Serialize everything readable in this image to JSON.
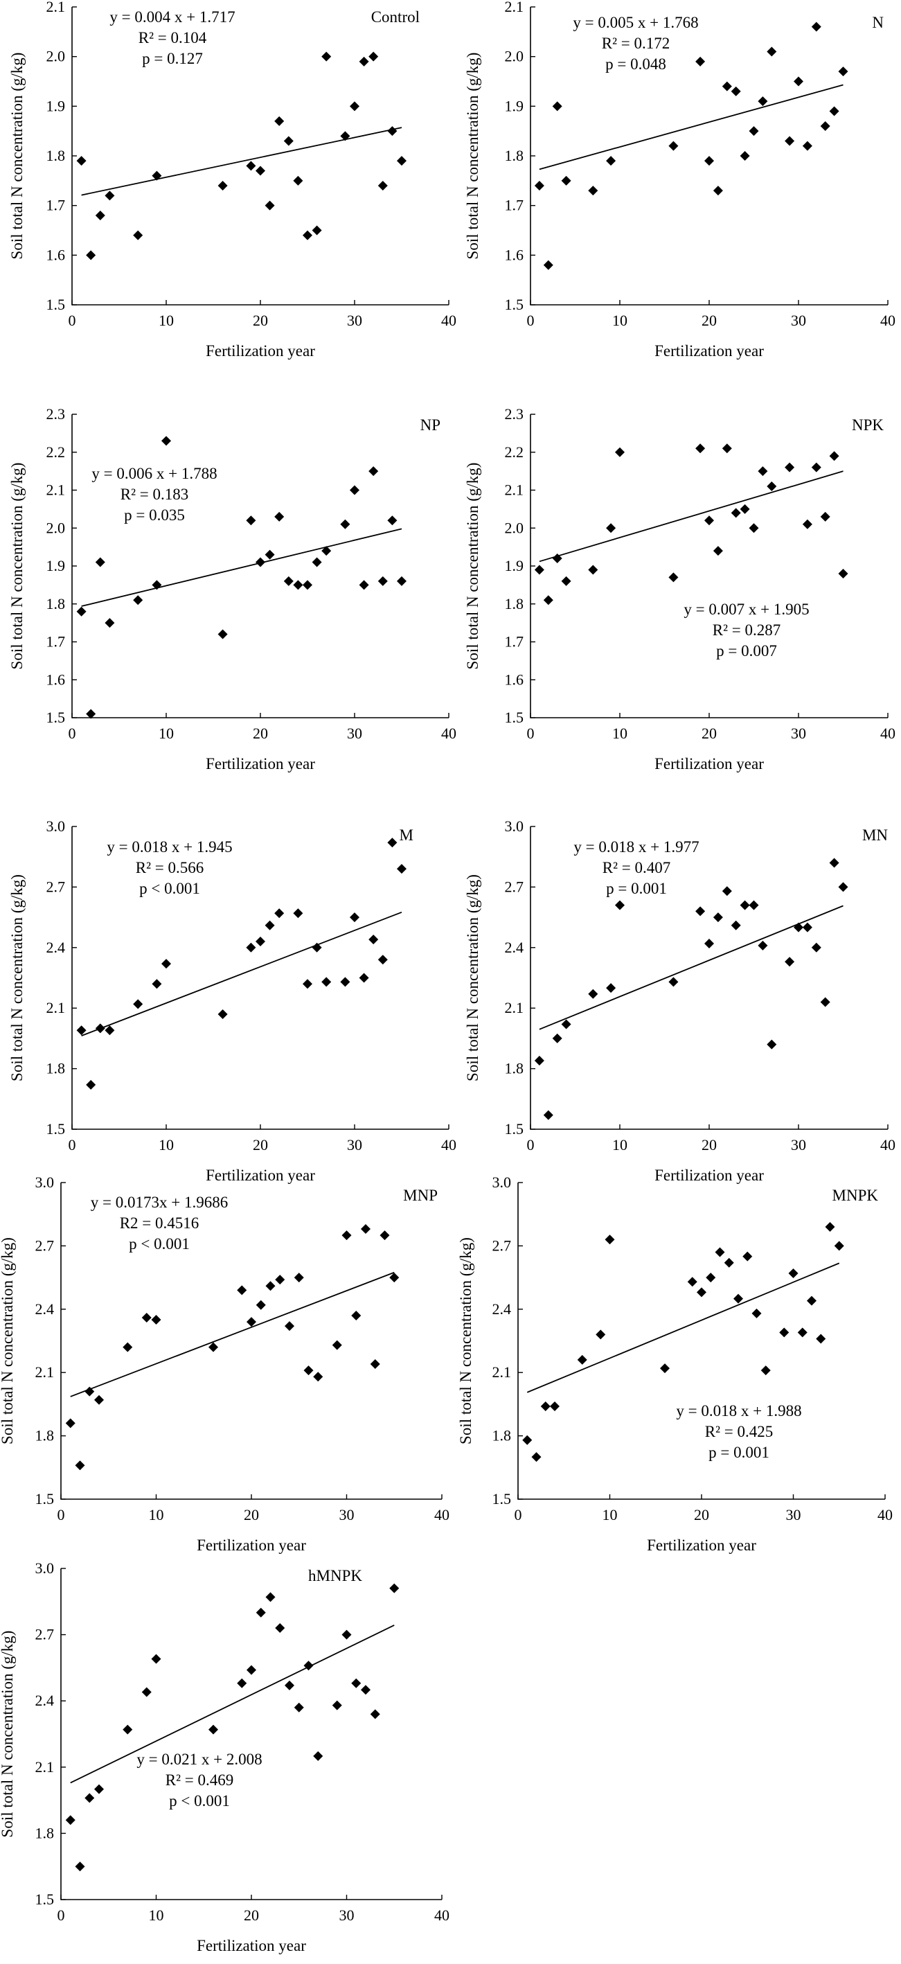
{
  "chart_data": [
    {
      "type": "scatter",
      "title": "Control",
      "xlabel": "Fertilization year",
      "ylabel": "Soil total N concentration (g/kg)",
      "xlim": [
        0,
        40
      ],
      "xticks": [
        "0",
        "10",
        "20",
        "30",
        "40"
      ],
      "ylim": [
        1.5,
        2.1
      ],
      "yticks": [
        "1.5",
        "1.6",
        "1.7",
        "1.8",
        "1.9",
        "2.0",
        "2.1"
      ],
      "equation": "y = 0.004 x + 1.717",
      "r2": "R² = 0.104",
      "p": "p = 0.127",
      "fit": {
        "slope": 0.004,
        "intercept": 1.717,
        "x": [
          1,
          35
        ]
      },
      "x": [
        1,
        2,
        3,
        4,
        7,
        9,
        16,
        19,
        20,
        21,
        22,
        23,
        24,
        25,
        26,
        27,
        29,
        30,
        31,
        32,
        33,
        34,
        35
      ],
      "y": [
        1.79,
        1.6,
        1.68,
        1.72,
        1.64,
        1.76,
        1.74,
        1.78,
        1.77,
        1.7,
        1.87,
        1.83,
        1.75,
        1.64,
        1.65,
        2.0,
        1.84,
        1.9,
        1.99,
        2.0,
        1.74,
        1.85,
        1.79
      ]
    },
    {
      "type": "scatter",
      "title": "N",
      "xlabel": "Fertilization year",
      "ylabel": "Soil total N concentration (g/kg)",
      "xlim": [
        0,
        40
      ],
      "xticks": [
        "0",
        "10",
        "20",
        "30",
        "40"
      ],
      "ylim": [
        1.5,
        2.1
      ],
      "yticks": [
        "1.5",
        "1.6",
        "1.7",
        "1.8",
        "1.9",
        "2.0",
        "2.1"
      ],
      "equation": "y = 0.005 x + 1.768",
      "r2": "R² = 0.172",
      "p": "p = 0.048",
      "fit": {
        "slope": 0.005,
        "intercept": 1.768,
        "x": [
          1,
          35
        ]
      },
      "x": [
        1,
        2,
        3,
        4,
        7,
        9,
        16,
        19,
        20,
        21,
        22,
        23,
        24,
        25,
        26,
        27,
        29,
        30,
        31,
        32,
        33,
        34,
        35
      ],
      "y": [
        1.74,
        1.58,
        1.9,
        1.75,
        1.73,
        1.79,
        1.82,
        1.99,
        1.79,
        1.73,
        1.94,
        1.93,
        1.8,
        1.85,
        1.91,
        2.01,
        1.83,
        1.95,
        1.82,
        2.06,
        1.86,
        1.89,
        1.97
      ]
    },
    {
      "type": "scatter",
      "title": "NP",
      "xlabel": "Fertilization year",
      "ylabel": "Soil total N concentration (g/kg)",
      "xlim": [
        0,
        40
      ],
      "xticks": [
        "0",
        "10",
        "20",
        "30",
        "40"
      ],
      "ylim": [
        1.5,
        2.3
      ],
      "yticks": [
        "1.5",
        "1.6",
        "1.7",
        "1.8",
        "1.9",
        "2.0",
        "2.1",
        "2.2",
        "2.3"
      ],
      "equation": "y = 0.006 x + 1.788",
      "r2": "R² = 0.183",
      "p": "p = 0.035",
      "fit": {
        "slope": 0.006,
        "intercept": 1.788,
        "x": [
          1,
          35
        ]
      },
      "x": [
        1,
        2,
        3,
        4,
        7,
        9,
        10,
        16,
        19,
        20,
        21,
        22,
        23,
        24,
        25,
        26,
        27,
        29,
        30,
        31,
        32,
        33,
        34,
        35
      ],
      "y": [
        1.78,
        1.51,
        1.91,
        1.75,
        1.81,
        1.85,
        2.23,
        1.72,
        2.02,
        1.91,
        1.93,
        2.03,
        1.86,
        1.85,
        1.85,
        1.91,
        1.94,
        2.01,
        2.1,
        1.85,
        2.15,
        1.86,
        2.02,
        1.86
      ]
    },
    {
      "type": "scatter",
      "title": "NPK",
      "xlabel": "Fertilization year",
      "ylabel": "Soil total N concentration (g/kg)",
      "xlim": [
        0,
        40
      ],
      "xticks": [
        "0",
        "10",
        "20",
        "30",
        "40"
      ],
      "ylim": [
        1.5,
        2.3
      ],
      "yticks": [
        "1.5",
        "1.6",
        "1.7",
        "1.8",
        "1.9",
        "2.0",
        "2.1",
        "2.2",
        "2.3"
      ],
      "equation": "y = 0.007 x + 1.905",
      "r2": "R² = 0.287",
      "p": "p = 0.007",
      "fit": {
        "slope": 0.007,
        "intercept": 1.905,
        "x": [
          1,
          35
        ]
      },
      "x": [
        1,
        2,
        3,
        4,
        7,
        9,
        10,
        16,
        19,
        20,
        21,
        22,
        23,
        24,
        25,
        26,
        27,
        29,
        31,
        32,
        33,
        34,
        35
      ],
      "y": [
        1.89,
        1.81,
        1.92,
        1.86,
        1.89,
        2.0,
        2.2,
        1.87,
        2.21,
        2.02,
        1.94,
        2.21,
        2.04,
        2.05,
        2.0,
        2.15,
        2.11,
        2.16,
        2.01,
        2.16,
        2.03,
        2.19,
        1.88
      ]
    },
    {
      "type": "scatter",
      "title": "M",
      "xlabel": "Fertilization year",
      "ylabel": "Soil total N concentration (g/kg)",
      "xlim": [
        0,
        40
      ],
      "xticks": [
        "0",
        "10",
        "20",
        "30",
        "40"
      ],
      "ylim": [
        1.5,
        3.0
      ],
      "yticks": [
        "1.5",
        "1.8",
        "2.1",
        "2.4",
        "2.7",
        "3.0"
      ],
      "equation": "y = 0.018 x + 1.945",
      "r2": "R² = 0.566",
      "p": "p < 0.001",
      "fit": {
        "slope": 0.018,
        "intercept": 1.945,
        "x": [
          1,
          35
        ]
      },
      "x": [
        1,
        2,
        3,
        4,
        7,
        9,
        10,
        16,
        19,
        20,
        21,
        22,
        24,
        25,
        26,
        27,
        29,
        30,
        31,
        32,
        33,
        34,
        35
      ],
      "y": [
        1.99,
        1.72,
        2.0,
        1.99,
        2.12,
        2.22,
        2.32,
        2.07,
        2.4,
        2.43,
        2.51,
        2.57,
        2.57,
        2.22,
        2.4,
        2.23,
        2.23,
        2.55,
        2.25,
        2.44,
        2.34,
        2.92,
        2.79
      ]
    },
    {
      "type": "scatter",
      "title": "MN",
      "xlabel": "Fertilization year",
      "ylabel": "Soil total N concentration (g/kg)",
      "xlim": [
        0,
        40
      ],
      "xticks": [
        "0",
        "10",
        "20",
        "30",
        "40"
      ],
      "ylim": [
        1.5,
        3.0
      ],
      "yticks": [
        "1.5",
        "1.8",
        "2.1",
        "2.4",
        "2.7",
        "3.0"
      ],
      "equation": "y = 0.018 x + 1.977",
      "r2": "R² = 0.407",
      "p": "p = 0.001",
      "fit": {
        "slope": 0.018,
        "intercept": 1.977,
        "x": [
          1,
          35
        ]
      },
      "x": [
        1,
        2,
        3,
        4,
        7,
        9,
        10,
        16,
        19,
        20,
        21,
        22,
        23,
        24,
        25,
        26,
        27,
        29,
        30,
        31,
        32,
        33,
        34,
        35
      ],
      "y": [
        1.84,
        1.57,
        1.95,
        2.02,
        2.17,
        2.2,
        2.61,
        2.23,
        2.58,
        2.42,
        2.55,
        2.68,
        2.51,
        2.61,
        2.61,
        2.41,
        1.92,
        2.33,
        2.5,
        2.5,
        2.4,
        2.13,
        2.82,
        2.7
      ]
    },
    {
      "type": "scatter",
      "title": "MNP",
      "xlabel": "Fertilization year",
      "ylabel": "Soil total N concentration (g/kg)",
      "xlim": [
        0,
        40
      ],
      "xticks": [
        "0",
        "10",
        "20",
        "30",
        "40"
      ],
      "ylim": [
        1.5,
        3.0
      ],
      "yticks": [
        "1.5",
        "1.8",
        "2.1",
        "2.4",
        "2.7",
        "3.0"
      ],
      "equation": "y = 0.0173x + 1.9686",
      "r2": "R2 = 0.4516",
      "p": "p < 0.001",
      "fit": {
        "slope": 0.0173,
        "intercept": 1.9686,
        "x": [
          1,
          35
        ]
      },
      "x": [
        1,
        2,
        3,
        4,
        7,
        9,
        10,
        16,
        19,
        20,
        21,
        22,
        23,
        24,
        25,
        26,
        27,
        29,
        30,
        31,
        32,
        33,
        34,
        35
      ],
      "y": [
        1.86,
        1.66,
        2.01,
        1.97,
        2.22,
        2.36,
        2.35,
        2.22,
        2.49,
        2.34,
        2.42,
        2.51,
        2.54,
        2.32,
        2.55,
        2.11,
        2.08,
        2.23,
        2.75,
        2.37,
        2.78,
        2.14,
        2.75,
        2.55
      ]
    },
    {
      "type": "scatter",
      "title": "MNPK",
      "xlabel": "Fertilization year",
      "ylabel": "Soil total N concentration (g/kg)",
      "xlim": [
        0,
        40
      ],
      "xticks": [
        "0",
        "10",
        "20",
        "30",
        "40"
      ],
      "ylim": [
        1.5,
        3.0
      ],
      "yticks": [
        "1.5",
        "1.8",
        "2.1",
        "2.4",
        "2.7",
        "3.0"
      ],
      "equation": "y = 0.018 x + 1.988",
      "r2": "R² = 0.425",
      "p": "p = 0.001",
      "fit": {
        "slope": 0.018,
        "intercept": 1.988,
        "x": [
          1,
          35
        ]
      },
      "x": [
        1,
        2,
        3,
        4,
        7,
        9,
        10,
        16,
        19,
        20,
        21,
        22,
        23,
        24,
        25,
        26,
        27,
        29,
        30,
        31,
        32,
        33,
        34,
        35
      ],
      "y": [
        1.78,
        1.7,
        1.94,
        1.94,
        2.16,
        2.28,
        2.73,
        2.12,
        2.53,
        2.48,
        2.55,
        2.67,
        2.62,
        2.45,
        2.65,
        2.38,
        2.11,
        2.29,
        2.57,
        2.29,
        2.44,
        2.26,
        2.79,
        2.7
      ]
    },
    {
      "type": "scatter",
      "title": "hMNPK",
      "xlabel": "Fertilization year",
      "ylabel": "Soil total N concentration (g/kg)",
      "xlim": [
        0,
        40
      ],
      "xticks": [
        "0",
        "10",
        "20",
        "30",
        "40"
      ],
      "ylim": [
        1.5,
        3.0
      ],
      "yticks": [
        "1.5",
        "1.8",
        "2.1",
        "2.4",
        "2.7",
        "3.0"
      ],
      "equation": "y = 0.021 x + 2.008",
      "r2": "R² = 0.469",
      "p": "p < 0.001",
      "fit": {
        "slope": 0.021,
        "intercept": 2.008,
        "x": [
          1,
          35
        ]
      },
      "x": [
        1,
        2,
        3,
        4,
        7,
        9,
        10,
        16,
        19,
        20,
        21,
        22,
        23,
        24,
        25,
        26,
        27,
        29,
        30,
        31,
        32,
        33,
        35
      ],
      "y": [
        1.86,
        1.65,
        1.96,
        2.0,
        2.27,
        2.44,
        2.59,
        2.27,
        2.48,
        2.54,
        2.8,
        2.87,
        2.73,
        2.47,
        2.37,
        2.56,
        2.15,
        2.38,
        2.7,
        2.48,
        2.45,
        2.34,
        2.91
      ]
    }
  ]
}
